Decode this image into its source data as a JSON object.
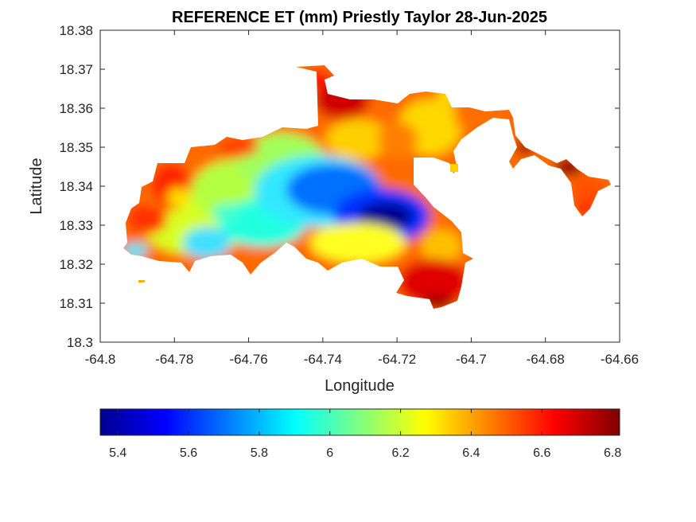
{
  "title": "REFERENCE ET (mm) Priestly Taylor 28-Jun-2025",
  "axes": {
    "xlabel": "Longitude",
    "ylabel": "Latitude",
    "xlim": [
      -64.8,
      -64.66
    ],
    "ylim": [
      18.3,
      18.38
    ],
    "xticks": [
      "-64.8",
      "-64.78",
      "-64.76",
      "-64.74",
      "-64.72",
      "-64.7",
      "-64.68",
      "-64.66"
    ],
    "yticks": [
      "18.38",
      "18.37",
      "18.36",
      "18.35",
      "18.34",
      "18.33",
      "18.32",
      "18.31",
      "18.3"
    ],
    "grid": false
  },
  "colorbar": {
    "range": [
      5.35,
      6.82
    ],
    "colormap": "jet",
    "ticks": [
      "5.4",
      "5.6",
      "5.8",
      "6",
      "6.2",
      "6.4",
      "6.6",
      "6.8"
    ],
    "orientation": "horizontal",
    "placement": "below plot"
  },
  "chart_data": {
    "type": "heatmap",
    "title": "REFERENCE ET (mm) Priestly Taylor 28-Jun-2025",
    "xlabel": "Longitude",
    "ylabel": "Latitude",
    "variable_units": "mm",
    "value_range": [
      5.35,
      6.82
    ],
    "regions": [
      {
        "lon": -64.725,
        "lat": 18.331,
        "value": 5.4
      },
      {
        "lon": -64.73,
        "lat": 18.333,
        "value": 5.6
      },
      {
        "lon": -64.74,
        "lat": 18.34,
        "value": 5.7
      },
      {
        "lon": -64.748,
        "lat": 18.329,
        "value": 5.8
      },
      {
        "lon": -64.772,
        "lat": 18.324,
        "value": 5.9
      },
      {
        "lon": -64.756,
        "lat": 18.335,
        "value": 6.0
      },
      {
        "lon": -64.76,
        "lat": 18.343,
        "value": 6.1
      },
      {
        "lon": -64.785,
        "lat": 18.331,
        "value": 6.4
      },
      {
        "lon": -64.715,
        "lat": 18.356,
        "value": 6.3
      },
      {
        "lon": -64.7,
        "lat": 18.358,
        "value": 6.5
      },
      {
        "lon": -64.735,
        "lat": 18.365,
        "value": 6.7
      },
      {
        "lon": -64.716,
        "lat": 18.315,
        "value": 6.7
      },
      {
        "lon": -64.672,
        "lat": 18.345,
        "value": 6.8
      },
      {
        "lon": -64.669,
        "lat": 18.337,
        "value": 6.5
      }
    ]
  }
}
